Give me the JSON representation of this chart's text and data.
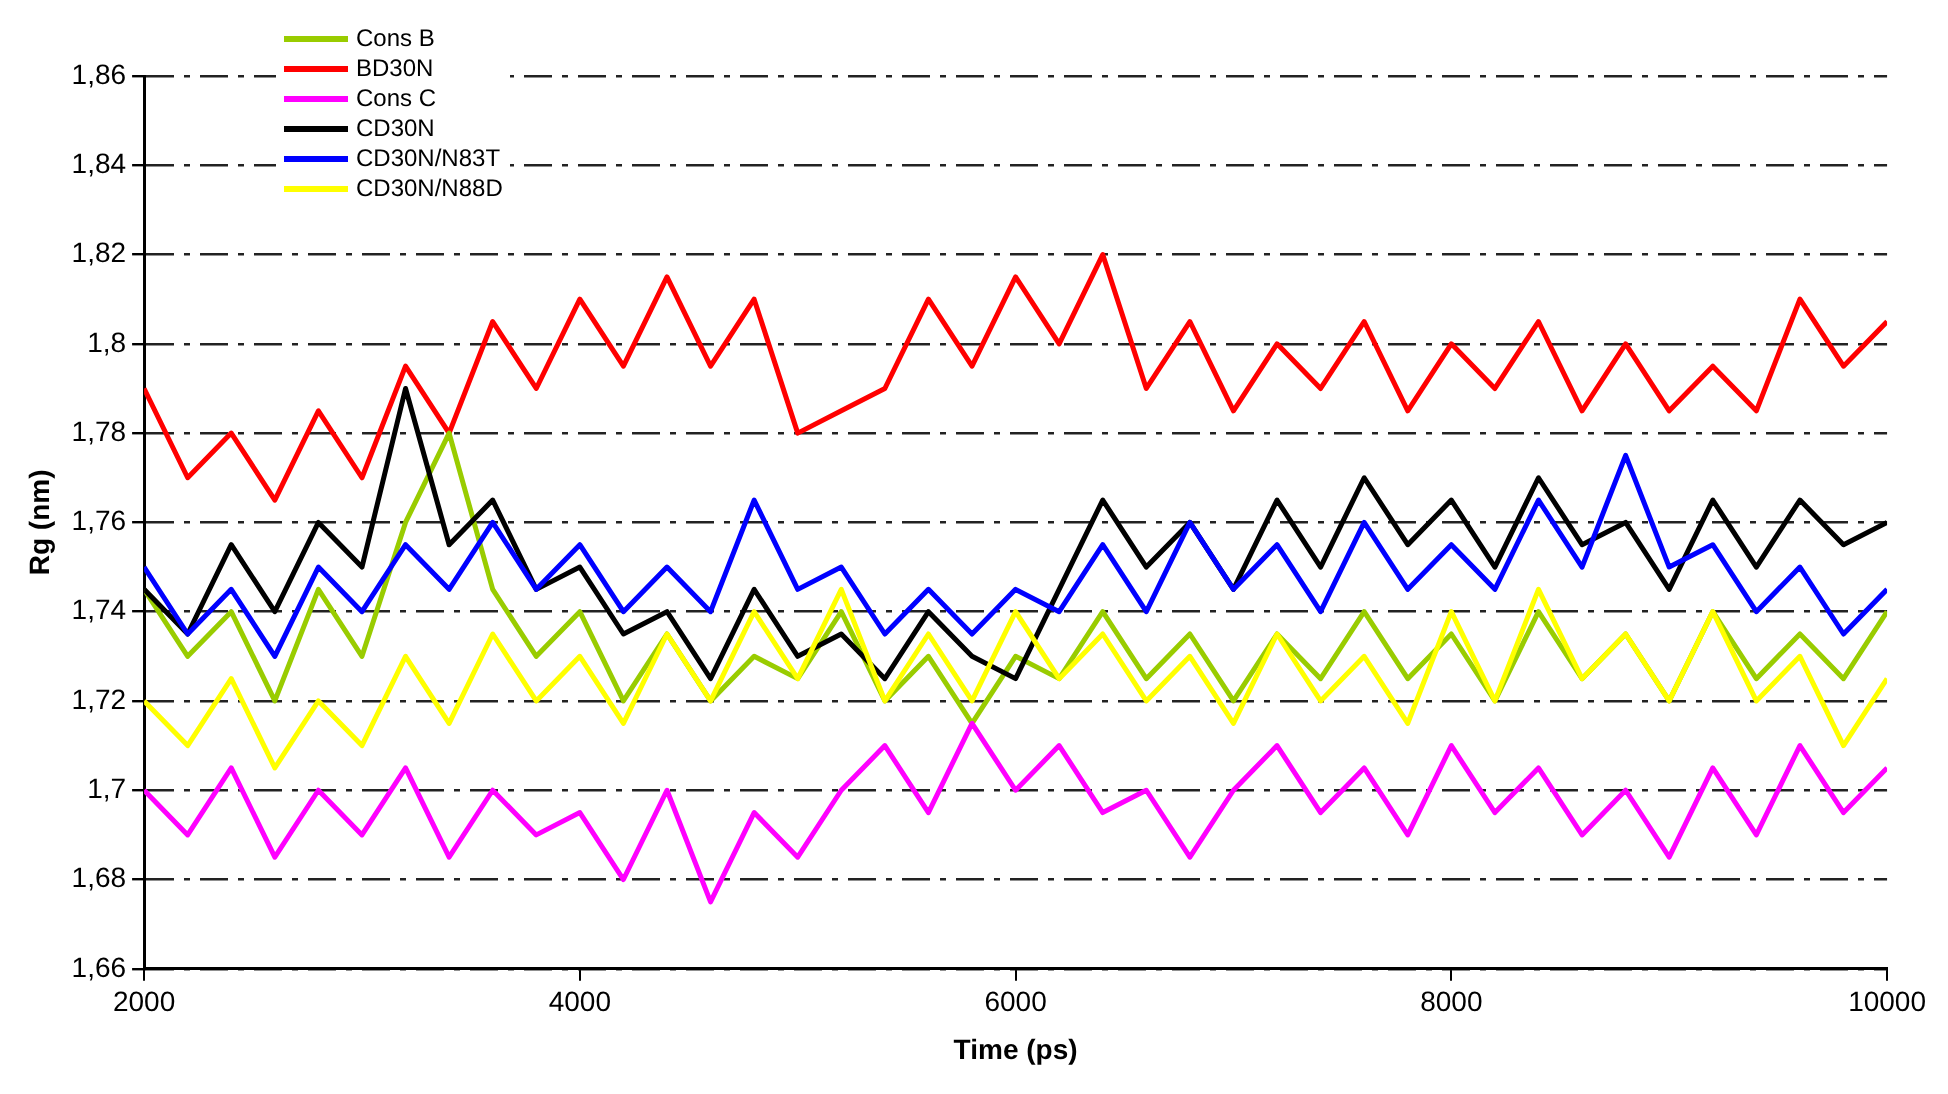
{
  "chart_data": {
    "type": "line",
    "xlabel": "Time (ps)",
    "ylabel": "Rg (nm)",
    "x": [
      2000,
      2200,
      2400,
      2600,
      2800,
      3000,
      3200,
      3400,
      3600,
      3800,
      4000,
      4200,
      4400,
      4600,
      4800,
      5000,
      5200,
      5400,
      5600,
      5800,
      6000,
      6200,
      6400,
      6600,
      6800,
      7000,
      7200,
      7400,
      7600,
      7800,
      8000,
      8200,
      8400,
      8600,
      8800,
      9000,
      9200,
      9400,
      9600,
      9800,
      10000
    ],
    "series": [
      {
        "name": "Cons B",
        "color": "#99cc00",
        "values": [
          1.745,
          1.73,
          1.74,
          1.72,
          1.745,
          1.73,
          1.76,
          1.78,
          1.745,
          1.73,
          1.74,
          1.72,
          1.735,
          1.72,
          1.73,
          1.725,
          1.74,
          1.72,
          1.73,
          1.715,
          1.73,
          1.725,
          1.74,
          1.725,
          1.735,
          1.72,
          1.735,
          1.725,
          1.74,
          1.725,
          1.735,
          1.72,
          1.74,
          1.725,
          1.735,
          1.72,
          1.74,
          1.725,
          1.735,
          1.725,
          1.74
        ]
      },
      {
        "name": "BD30N",
        "color": "#ff0000",
        "values": [
          1.79,
          1.77,
          1.78,
          1.765,
          1.785,
          1.77,
          1.795,
          1.78,
          1.805,
          1.79,
          1.81,
          1.795,
          1.815,
          1.795,
          1.81,
          1.78,
          1.785,
          1.79,
          1.81,
          1.795,
          1.815,
          1.8,
          1.82,
          1.79,
          1.805,
          1.785,
          1.8,
          1.79,
          1.805,
          1.785,
          1.8,
          1.79,
          1.805,
          1.785,
          1.8,
          1.785,
          1.795,
          1.785,
          1.81,
          1.795,
          1.805
        ]
      },
      {
        "name": "Cons C",
        "color": "#ff00ff",
        "values": [
          1.7,
          1.69,
          1.705,
          1.685,
          1.7,
          1.69,
          1.705,
          1.685,
          1.7,
          1.69,
          1.695,
          1.68,
          1.7,
          1.675,
          1.695,
          1.685,
          1.7,
          1.71,
          1.695,
          1.715,
          1.7,
          1.71,
          1.695,
          1.7,
          1.685,
          1.7,
          1.71,
          1.695,
          1.705,
          1.69,
          1.71,
          1.695,
          1.705,
          1.69,
          1.7,
          1.685,
          1.705,
          1.69,
          1.71,
          1.695,
          1.705
        ]
      },
      {
        "name": "CD30N",
        "color": "#000000",
        "values": [
          1.745,
          1.735,
          1.755,
          1.74,
          1.76,
          1.75,
          1.79,
          1.755,
          1.765,
          1.745,
          1.75,
          1.735,
          1.74,
          1.725,
          1.745,
          1.73,
          1.735,
          1.725,
          1.74,
          1.73,
          1.725,
          1.745,
          1.765,
          1.75,
          1.76,
          1.745,
          1.765,
          1.75,
          1.77,
          1.755,
          1.765,
          1.75,
          1.77,
          1.755,
          1.76,
          1.745,
          1.765,
          1.75,
          1.765,
          1.755,
          1.76
        ]
      },
      {
        "name": "CD30N/N83T",
        "color": "#0000ff",
        "values": [
          1.75,
          1.735,
          1.745,
          1.73,
          1.75,
          1.74,
          1.755,
          1.745,
          1.76,
          1.745,
          1.755,
          1.74,
          1.75,
          1.74,
          1.765,
          1.745,
          1.75,
          1.735,
          1.745,
          1.735,
          1.745,
          1.74,
          1.755,
          1.74,
          1.76,
          1.745,
          1.755,
          1.74,
          1.76,
          1.745,
          1.755,
          1.745,
          1.765,
          1.75,
          1.775,
          1.75,
          1.755,
          1.74,
          1.75,
          1.735,
          1.745
        ]
      },
      {
        "name": "CD30N/N88D",
        "color": "#ffff00",
        "values": [
          1.72,
          1.71,
          1.725,
          1.705,
          1.72,
          1.71,
          1.73,
          1.715,
          1.735,
          1.72,
          1.73,
          1.715,
          1.735,
          1.72,
          1.74,
          1.725,
          1.745,
          1.72,
          1.735,
          1.72,
          1.74,
          1.725,
          1.735,
          1.72,
          1.73,
          1.715,
          1.735,
          1.72,
          1.73,
          1.715,
          1.74,
          1.72,
          1.745,
          1.725,
          1.735,
          1.72,
          1.74,
          1.72,
          1.73,
          1.71,
          1.725
        ]
      }
    ],
    "xlim": [
      2000,
      10000
    ],
    "xticks": [
      2000,
      4000,
      6000,
      8000,
      10000
    ],
    "ylim": [
      1.66,
      1.86
    ],
    "yticks": [
      {
        "value": 1.66,
        "label": "1,66"
      },
      {
        "value": 1.68,
        "label": "1,68"
      },
      {
        "value": 1.7,
        "label": "1,7"
      },
      {
        "value": 1.72,
        "label": "1,72"
      },
      {
        "value": 1.74,
        "label": "1,74"
      },
      {
        "value": 1.76,
        "label": "1,76"
      },
      {
        "value": 1.78,
        "label": "1,78"
      },
      {
        "value": 1.8,
        "label": "1,8"
      },
      {
        "value": 1.82,
        "label": "1,82"
      },
      {
        "value": 1.84,
        "label": "1,84"
      },
      {
        "value": 1.86,
        "label": "1,86"
      }
    ],
    "grid": "y",
    "legend": "top left",
    "marker": "none",
    "line_style": "solid"
  }
}
